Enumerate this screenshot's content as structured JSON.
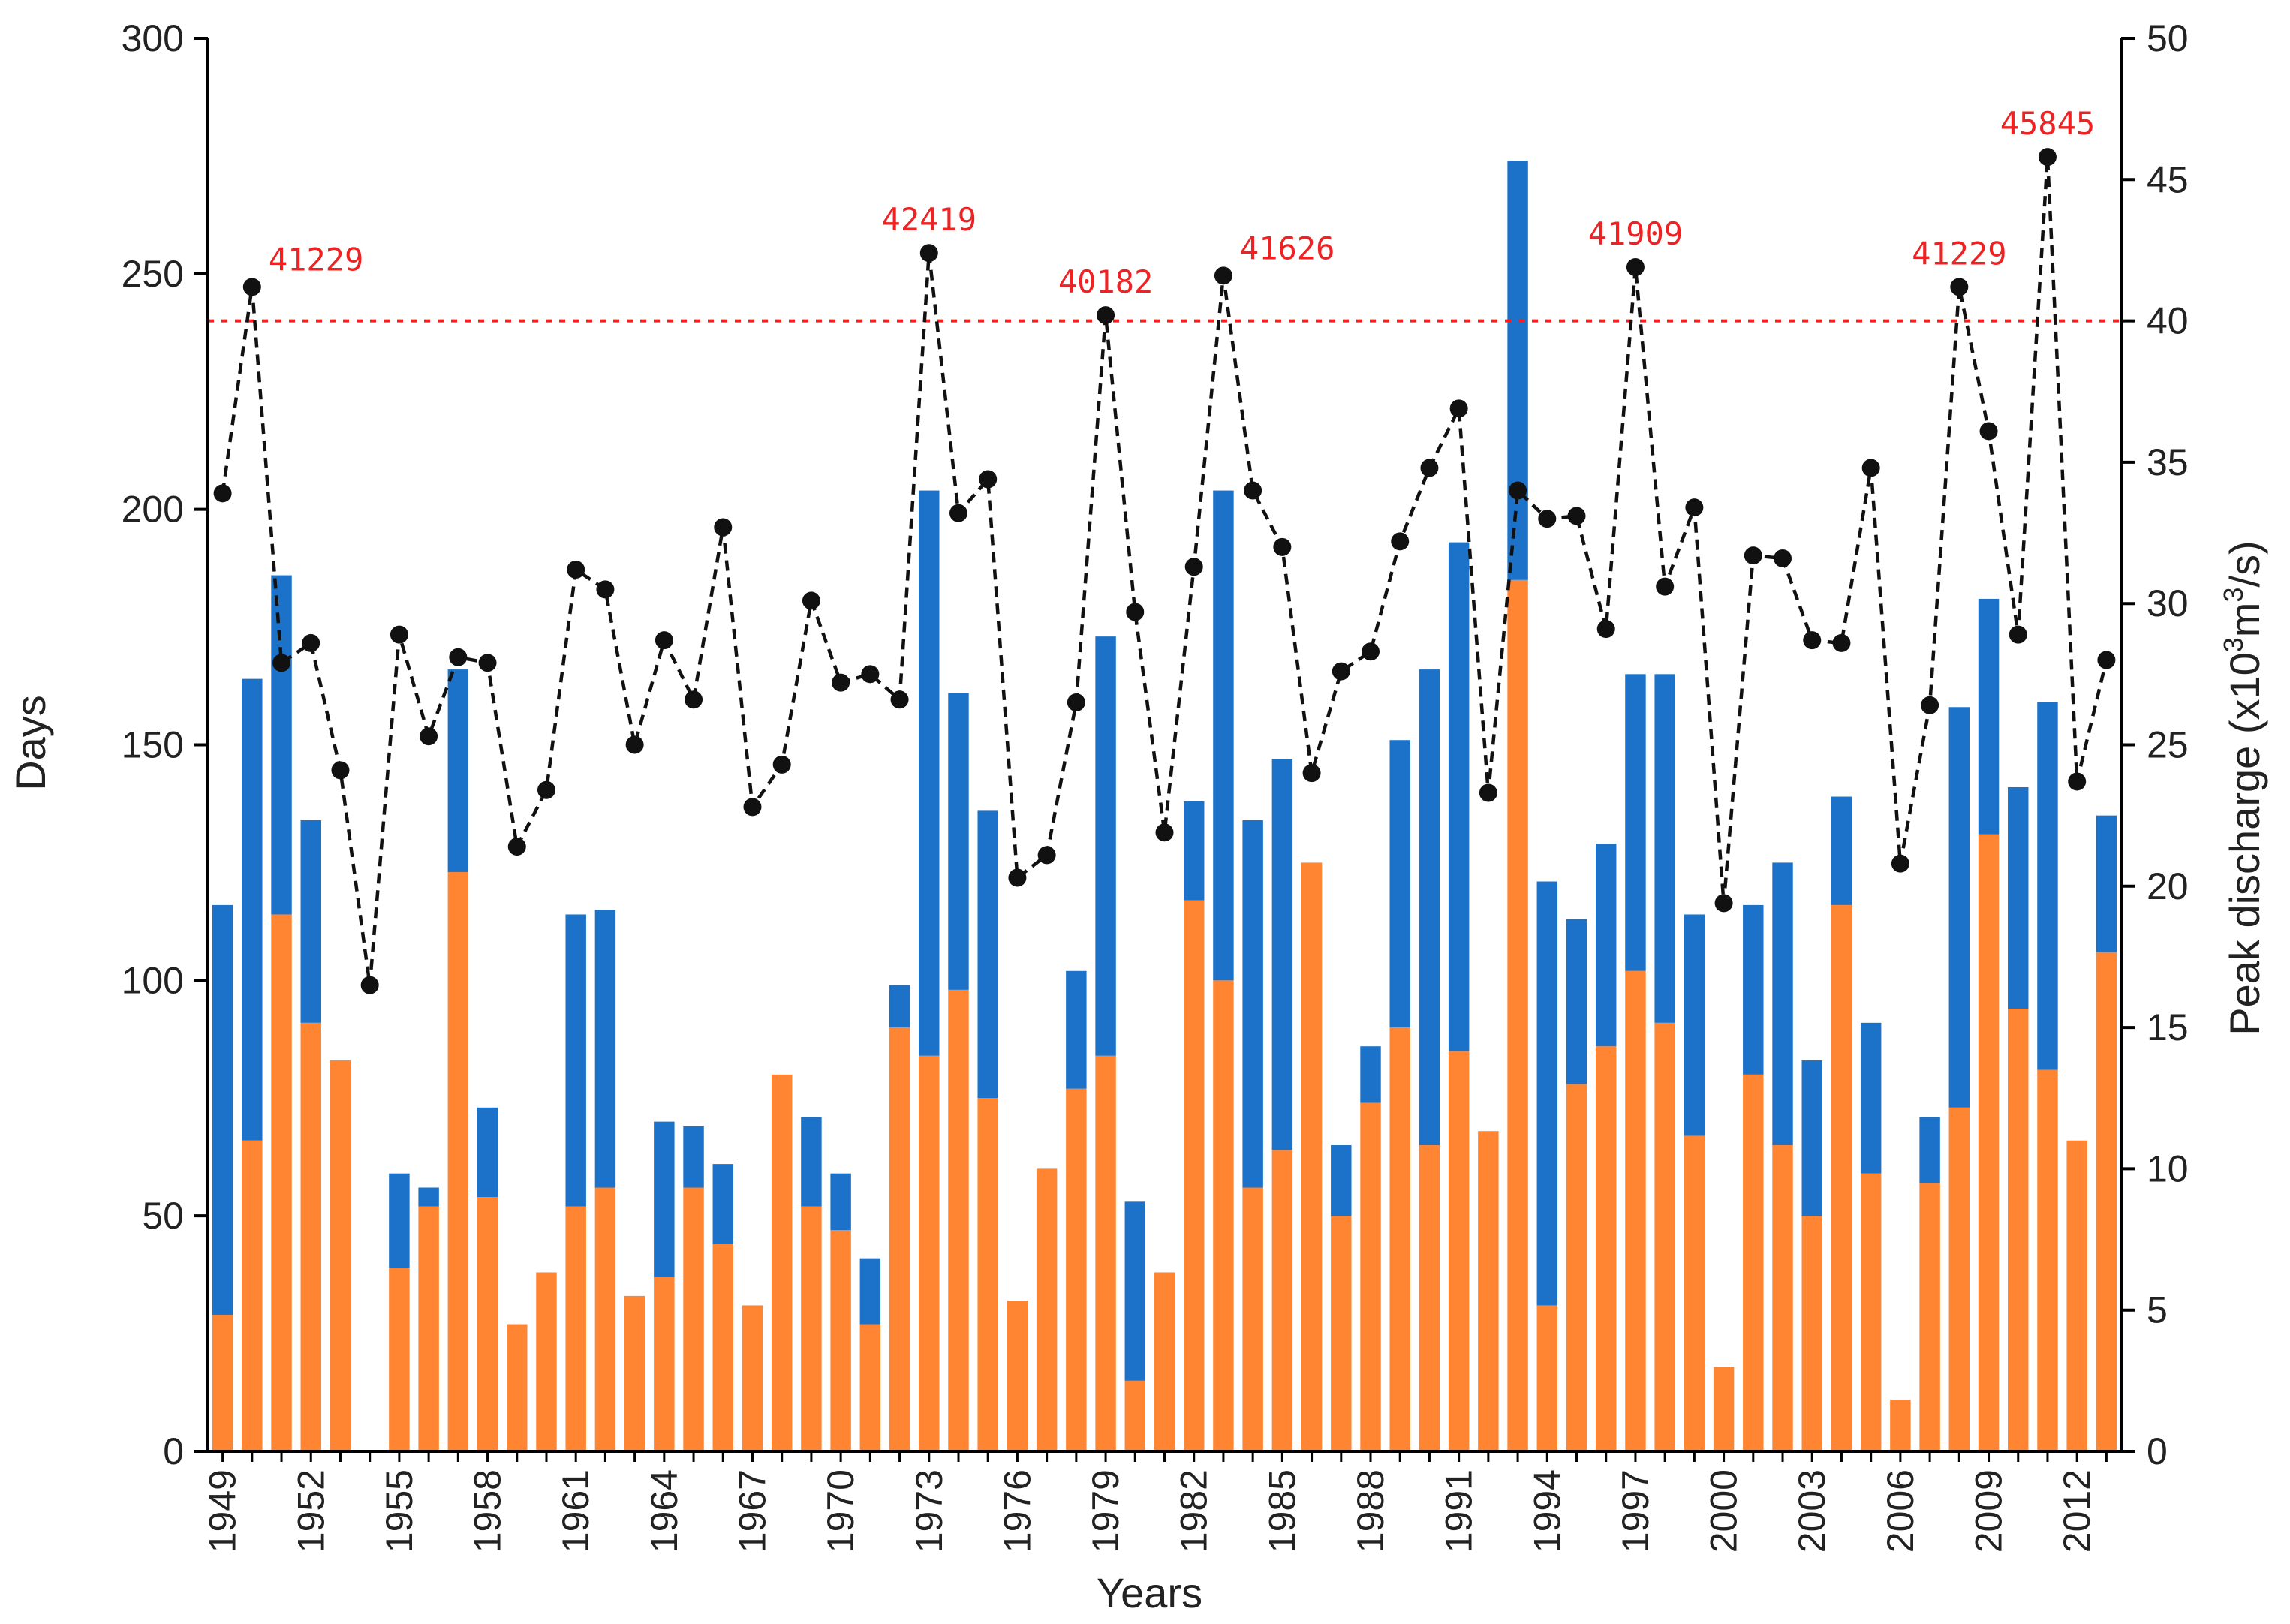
{
  "chart_data": {
    "type": "bar",
    "title": "",
    "xlabel": "Years",
    "ylabel": "Days",
    "y2label": {
      "prefix": "Peak discharge (x10",
      "sup1": "3",
      "mid": "m",
      "sup2": "3",
      "suffix": "/s)"
    },
    "ylim": [
      0,
      300
    ],
    "y2lim": [
      0,
      50
    ],
    "yticks": [
      "0",
      "50",
      "100",
      "150",
      "200",
      "250",
      "300"
    ],
    "y2ticks": [
      "0",
      "5",
      "10",
      "15",
      "20",
      "25",
      "30",
      "35",
      "40",
      "45",
      "50"
    ],
    "xtick_labels": [
      "1949",
      "1952",
      "1955",
      "1958",
      "1961",
      "1964",
      "1967",
      "1970",
      "1973",
      "1976",
      "1979",
      "1982",
      "1985",
      "1988",
      "1991",
      "1994",
      "1997",
      "2000",
      "2003",
      "2006",
      "2009",
      "2012"
    ],
    "years": [
      1949,
      1950,
      1951,
      1952,
      1953,
      1954,
      1955,
      1956,
      1957,
      1958,
      1959,
      1960,
      1961,
      1962,
      1963,
      1964,
      1965,
      1966,
      1967,
      1968,
      1969,
      1970,
      1971,
      1972,
      1973,
      1974,
      1975,
      1976,
      1977,
      1978,
      1979,
      1980,
      1981,
      1982,
      1983,
      1984,
      1985,
      1986,
      1987,
      1988,
      1989,
      1990,
      1991,
      1992,
      1993,
      1994,
      1995,
      1996,
      1997,
      1998,
      1999,
      2000,
      2001,
      2002,
      2003,
      2004,
      2005,
      2006,
      2007,
      2008,
      2009,
      2010,
      2011,
      2012,
      2013
    ],
    "series": [
      {
        "name": "Days (orange)",
        "color": "#ff8533",
        "type": "stacked-bar",
        "values": [
          29,
          66,
          114,
          91,
          83,
          0,
          39,
          52,
          123,
          54,
          27,
          38,
          52,
          56,
          33,
          37,
          56,
          44,
          31,
          80,
          52,
          47,
          27,
          90,
          84,
          98,
          75,
          32,
          60,
          77,
          84,
          15,
          38,
          117,
          100,
          56,
          64,
          125,
          50,
          74,
          90,
          65,
          85,
          68,
          185,
          31,
          78,
          86,
          102,
          91,
          67,
          18,
          80,
          65,
          50,
          116,
          59,
          11,
          57,
          73,
          131,
          94,
          81,
          66,
          106
        ]
      },
      {
        "name": "Days (blue)",
        "color": "#1c72c8",
        "type": "stacked-bar",
        "values": [
          87,
          98,
          72,
          43,
          0,
          0,
          20,
          4,
          43,
          19,
          0,
          0,
          62,
          59,
          0,
          33,
          13,
          17,
          0,
          0,
          19,
          12,
          14,
          9,
          120,
          63,
          61,
          0,
          0,
          25,
          89,
          38,
          0,
          21,
          104,
          78,
          83,
          0,
          15,
          12,
          61,
          101,
          108,
          0,
          89,
          90,
          35,
          43,
          63,
          74,
          47,
          0,
          36,
          60,
          33,
          23,
          32,
          0,
          14,
          85,
          50,
          47,
          78,
          0,
          29
        ]
      },
      {
        "name": "Peak discharge",
        "color": "#111111",
        "type": "line",
        "axis": "right",
        "values": [
          33.9,
          41.2,
          27.9,
          28.6,
          24.1,
          16.5,
          28.9,
          25.3,
          28.1,
          27.9,
          21.4,
          23.4,
          31.2,
          30.5,
          25.0,
          28.7,
          26.6,
          32.7,
          22.8,
          24.3,
          30.1,
          27.2,
          27.5,
          26.6,
          42.4,
          33.2,
          34.4,
          20.3,
          21.1,
          26.5,
          40.2,
          29.7,
          21.9,
          31.3,
          41.6,
          34.0,
          32.0,
          24.0,
          27.6,
          28.3,
          32.2,
          34.8,
          36.9,
          23.3,
          34.0,
          33.0,
          33.1,
          29.1,
          41.9,
          30.6,
          33.4,
          19.4,
          31.7,
          31.6,
          28.7,
          28.6,
          34.8,
          20.8,
          26.4,
          41.2,
          36.1,
          28.9,
          45.8,
          23.7,
          28.0
        ]
      }
    ],
    "threshold": {
      "value": 40,
      "axis": "right",
      "color": "#ee2222",
      "style": "dotted"
    },
    "annotations": [
      {
        "year": 1950,
        "text": "41229"
      },
      {
        "year": 1973,
        "text": "42419"
      },
      {
        "year": 1979,
        "text": "40182"
      },
      {
        "year": 1983,
        "text": "41626"
      },
      {
        "year": 1997,
        "text": "41909"
      },
      {
        "year": 2008,
        "text": "41229"
      },
      {
        "year": 2011,
        "text": "45845"
      }
    ]
  }
}
